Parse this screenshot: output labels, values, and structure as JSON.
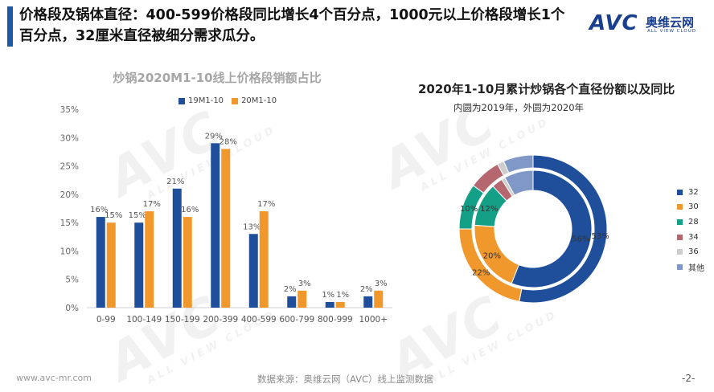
{
  "header": {
    "headline": "价格段及锅体直径：400-599价格段同比增长4个百分点，1000元以上价格段增长1个百分点，32厘米直径被细分需求瓜分。"
  },
  "logo": {
    "brand": "AVC",
    "cn_name": "奥维云网",
    "en_name": "ALL VIEW CLOUD"
  },
  "watermark": {
    "text": "AVC",
    "sub": "ALL VIEW CLOUD"
  },
  "colors": {
    "accent": "#1f5aa6",
    "series_2019": "#1f4e9b",
    "series_2020": "#f0982b"
  },
  "chart_data": [
    {
      "type": "bar",
      "title": "炒锅2020M1-10线上价格段销额占比",
      "categories": [
        "0-99",
        "100-149",
        "150-199",
        "200-399",
        "400-599",
        "600-799",
        "800-999",
        "1000+"
      ],
      "series": [
        {
          "name": "19M1-10",
          "color": "#1f4e9b",
          "values": [
            16,
            15,
            21,
            29,
            13,
            2,
            1,
            2
          ]
        },
        {
          "name": "20M1-10",
          "color": "#f0982b",
          "values": [
            15,
            17,
            16,
            28,
            17,
            3,
            1,
            3
          ]
        }
      ],
      "ylim": [
        0,
        35
      ],
      "yticks": [
        0,
        5,
        10,
        15,
        20,
        25,
        30,
        35
      ],
      "ytick_labels": [
        "0%",
        "5%",
        "10%",
        "15%",
        "20%",
        "25%",
        "30%",
        "35%"
      ],
      "data_labels": {
        "19M1-10": [
          "16%",
          "15%",
          "21%",
          "29%",
          "13%",
          "2%",
          "1%",
          "2%"
        ],
        "20M1-10": [
          "15%",
          "17%",
          "16%",
          "28%",
          "17%",
          "3%",
          "1%",
          "3%"
        ]
      },
      "legend": "top",
      "grid": false
    },
    {
      "type": "pie",
      "title": "2020年1-10月累计炒锅各个直径份额以及同比",
      "subtitle": "内圆为2019年，外圆为2020年",
      "categories": [
        "32",
        "30",
        "28",
        "34",
        "36",
        "其他"
      ],
      "colors": [
        "#1f4e9b",
        "#f0982b",
        "#14a086",
        "#b5666f",
        "#cdcdcd",
        "#7f98c7"
      ],
      "series": [
        {
          "name": "2019",
          "ring": "inner",
          "values": [
            56,
            20,
            12,
            3,
            1,
            8
          ]
        },
        {
          "name": "2020",
          "ring": "outer",
          "values": [
            53,
            22,
            10,
            7,
            1.5,
            6.5
          ]
        }
      ],
      "data_labels": {
        "2019": [
          "56%",
          "20%",
          "12%"
        ],
        "2020": [
          "53%",
          "22%",
          "10%"
        ]
      },
      "legend": "right"
    }
  ],
  "footer": {
    "url": "www.avc-mr.com",
    "source": "数据来源：奥维云网（AVC）线上监测数据",
    "page": "-2-"
  }
}
